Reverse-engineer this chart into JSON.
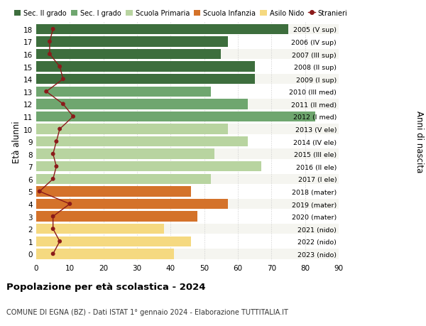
{
  "ages": [
    18,
    17,
    16,
    15,
    14,
    13,
    12,
    11,
    10,
    9,
    8,
    7,
    6,
    5,
    4,
    3,
    2,
    1,
    0
  ],
  "values": [
    75,
    57,
    55,
    65,
    65,
    52,
    63,
    83,
    57,
    63,
    53,
    67,
    52,
    46,
    57,
    48,
    38,
    46,
    41
  ],
  "stranieri": [
    5,
    4,
    4,
    7,
    8,
    3,
    8,
    11,
    7,
    6,
    5,
    6,
    5,
    1,
    10,
    5,
    5,
    7,
    5
  ],
  "right_labels": [
    "2005 (V sup)",
    "2006 (IV sup)",
    "2007 (III sup)",
    "2008 (II sup)",
    "2009 (I sup)",
    "2010 (III med)",
    "2011 (II med)",
    "2012 (I med)",
    "2013 (V ele)",
    "2014 (IV ele)",
    "2015 (III ele)",
    "2016 (II ele)",
    "2017 (I ele)",
    "2018 (mater)",
    "2019 (mater)",
    "2020 (mater)",
    "2021 (nido)",
    "2022 (nido)",
    "2023 (nido)"
  ],
  "bar_colors": [
    "#3d6e3d",
    "#3d6e3d",
    "#3d6e3d",
    "#3d6e3d",
    "#3d6e3d",
    "#6fa66f",
    "#6fa66f",
    "#6fa66f",
    "#b8d4a0",
    "#b8d4a0",
    "#b8d4a0",
    "#b8d4a0",
    "#b8d4a0",
    "#d4722a",
    "#d4722a",
    "#d4722a",
    "#f5d980",
    "#f5d980",
    "#f5d980"
  ],
  "color_stranieri": "#8b1a1a",
  "legend_labels": [
    "Sec. II grado",
    "Sec. I grado",
    "Scuola Primaria",
    "Scuola Infanzia",
    "Asilo Nido",
    "Stranieri"
  ],
  "legend_colors": [
    "#3d6e3d",
    "#6fa66f",
    "#b8d4a0",
    "#d4722a",
    "#f5d980",
    "#8b1a1a"
  ],
  "title": "Popolazione per età scolastica - 2024",
  "subtitle": "COMUNE DI EGNA (BZ) - Dati ISTAT 1° gennaio 2024 - Elaborazione TUTTITALIA.IT",
  "ylabel": "Età alunni",
  "ylabel_right": "Anni di nascita",
  "xlim": [
    0,
    90
  ],
  "xticks": [
    0,
    10,
    20,
    30,
    40,
    50,
    60,
    70,
    80,
    90
  ],
  "background_color": "#ffffff",
  "grid_color": "#cccccc",
  "bar_height": 0.82,
  "row_bg_even": "#f5f5f0",
  "row_bg_odd": "#ffffff"
}
